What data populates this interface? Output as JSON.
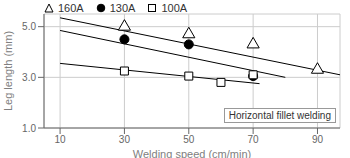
{
  "chart_data": {
    "type": "scatter",
    "xlabel": "Welding speed (cm/min)",
    "ylabel": "Leg length (mm)",
    "xlim": [
      5,
      97
    ],
    "ylim": [
      1.0,
      5.5
    ],
    "xticks": [
      10,
      30,
      50,
      70,
      90
    ],
    "yticks": [
      {
        "value": 1.0,
        "label": "1.0"
      },
      {
        "value": 3.0,
        "label": "3.0"
      },
      {
        "value": 5.0,
        "label": "5.0"
      }
    ],
    "grid": true,
    "legend": "upper left",
    "annotation": "Horizontal fillet welding",
    "series": [
      {
        "name": "160A",
        "color": "#000000",
        "marker": "triangle-open",
        "x": [
          30,
          50,
          70,
          90
        ],
        "y": [
          5.0,
          4.7,
          4.3,
          3.3
        ],
        "trend_x": [
          10,
          97
        ],
        "trend_y": [
          5.35,
          3.1
        ]
      },
      {
        "name": "130A",
        "color": "#000000",
        "marker": "circle-filled",
        "x": [
          30,
          50,
          70
        ],
        "y": [
          4.5,
          4.3,
          3.05
        ],
        "trend_x": [
          10,
          80
        ],
        "trend_y": [
          4.85,
          3.0
        ]
      },
      {
        "name": "100A",
        "color": "#000000",
        "marker": "square-open",
        "x": [
          30,
          50,
          60,
          70
        ],
        "y": [
          3.25,
          3.05,
          2.8,
          3.1
        ],
        "trend_x": [
          10,
          72
        ],
        "trend_y": [
          3.55,
          2.75
        ]
      }
    ]
  }
}
